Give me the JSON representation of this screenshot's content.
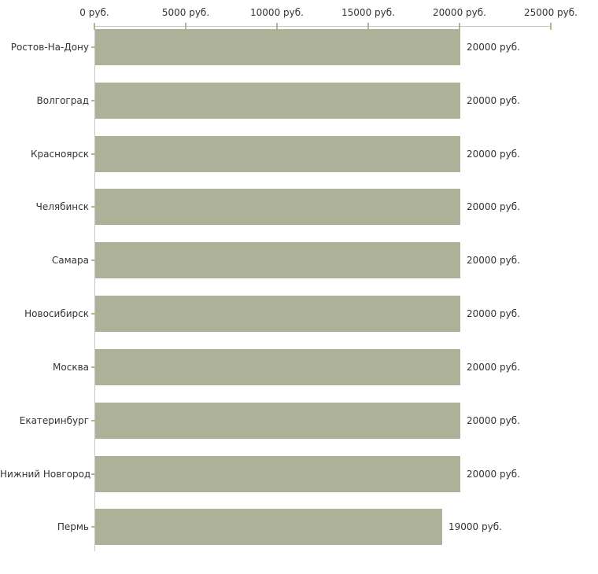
{
  "chart_data": {
    "type": "bar",
    "orientation": "horizontal",
    "title": "",
    "xlabel": "",
    "ylabel": "",
    "grid": false,
    "legend": "none",
    "categories": [
      "Ростов-На-Дону",
      "Волгоград",
      "Красноярск",
      "Челябинск",
      "Самара",
      "Новосибирск",
      "Москва",
      "Екатеринбург",
      "Нижний Новгород",
      "Пермь"
    ],
    "values": [
      20000,
      20000,
      20000,
      20000,
      20000,
      20000,
      20000,
      20000,
      20000,
      19000
    ],
    "value_labels": [
      "20000 руб.",
      "20000 руб.",
      "20000 руб.",
      "20000 руб.",
      "20000 руб.",
      "20000 руб.",
      "20000 руб.",
      "20000 руб.",
      "20000 руб.",
      "19000 руб."
    ],
    "x_axis": {
      "min": 0,
      "max": 25000,
      "ticks": [
        0,
        5000,
        10000,
        15000,
        20000,
        25000
      ],
      "tick_labels": [
        "0 руб.",
        "5000 руб.",
        "10000 руб.",
        "15000 руб.",
        "20000 руб.",
        "25000 руб."
      ]
    },
    "colors": {
      "bar": "#acb197",
      "axis_line": "#c6c6c6",
      "tick": "#b3b58b",
      "text": "#333333",
      "background": "#ffffff"
    }
  }
}
